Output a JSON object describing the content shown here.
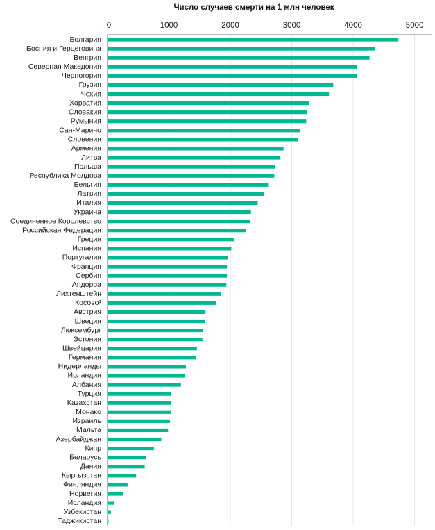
{
  "chart_data": {
    "type": "bar",
    "orientation": "horizontal",
    "title": "Число случаев смерти на 1 млн человек",
    "xlabel": "",
    "ylabel": "",
    "xlim": [
      0,
      5000
    ],
    "xticks": [
      "0",
      "1000",
      "2000",
      "3000",
      "4000",
      "5000"
    ],
    "grid": true,
    "bar_color": "#00b992",
    "categories": [
      "Болгария",
      "Босния и Герцеговина",
      "Венгрия",
      "Северная Македония",
      "Черногория",
      "Грузия",
      "Чехия",
      "Хорватия",
      "Словакия",
      "Румыния",
      "Сан-Марино",
      "Словения",
      "Армения",
      "Литва",
      "Польша",
      "Республика Молдова",
      "Бельгия",
      "Латвия",
      "Италия",
      "Украина",
      "Соединенное Королевство",
      "Российская Федерация",
      "Греция",
      "Испания",
      "Португалия",
      "Франция",
      "Сербия",
      "Андорра",
      "Лихтенштейн",
      "Косово¹",
      "Австрия",
      "Швеция",
      "Люксембург",
      "Эстония",
      "Швейцария",
      "Германия",
      "Нидерланды",
      "Ирландия",
      "Албания",
      "Турция",
      "Казахстан",
      "Монако",
      "Израиль",
      "Мальта",
      "Азербайджан",
      "Кипр",
      "Беларусь",
      "Дания",
      "Кыргызстан",
      "Финляндия",
      "Норвегия",
      "Исландия",
      "Узбекистан",
      "Таджикистан"
    ],
    "values": [
      4730,
      4350,
      4260,
      4060,
      4060,
      3670,
      3600,
      3270,
      3240,
      3230,
      3130,
      3090,
      2860,
      2810,
      2720,
      2710,
      2620,
      2540,
      2440,
      2330,
      2320,
      2250,
      2050,
      2010,
      1950,
      1940,
      1940,
      1930,
      1840,
      1760,
      1590,
      1580,
      1550,
      1540,
      1450,
      1430,
      1270,
      1260,
      1190,
      1030,
      1030,
      1030,
      1010,
      980,
      870,
      750,
      620,
      600,
      460,
      320,
      250,
      100,
      50,
      10
    ]
  }
}
